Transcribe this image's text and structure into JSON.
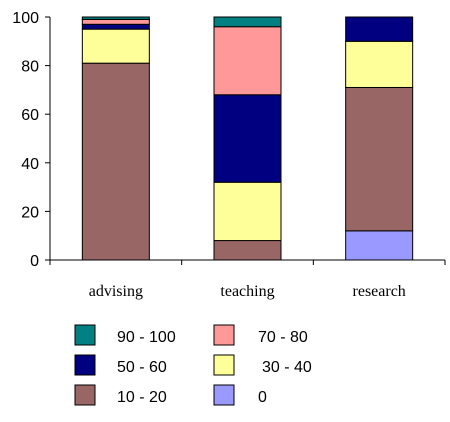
{
  "chart_data": {
    "type": "bar",
    "stacked": true,
    "title": "",
    "xlabel": "",
    "ylabel": "",
    "ylim": [
      0,
      100
    ],
    "yticks": [
      "0",
      "20",
      "40",
      "60",
      "80",
      "100"
    ],
    "grid": false,
    "legend_position": "bottom",
    "categories": [
      "advising",
      "teaching",
      "research"
    ],
    "series": [
      {
        "name": "0",
        "color": "#9999ff",
        "values": [
          0,
          0,
          12
        ]
      },
      {
        "name": "10 - 20",
        "color": "#996666",
        "values": [
          81,
          8,
          59
        ]
      },
      {
        "name": "30 - 40",
        "color": "#ffff99",
        "values": [
          14,
          24,
          19
        ]
      },
      {
        "name": "50 - 60",
        "color": "#000080",
        "values": [
          2,
          36,
          10
        ]
      },
      {
        "name": "70 - 80",
        "color": "#ff9999",
        "values": [
          2,
          28,
          0
        ]
      },
      {
        "name": "90 - 100",
        "color": "#008080",
        "values": [
          1,
          4,
          0
        ]
      }
    ],
    "legend_order": [
      "90 - 100",
      "70 - 80",
      "50 - 60",
      "30 - 40",
      "10 - 20",
      "0"
    ]
  }
}
